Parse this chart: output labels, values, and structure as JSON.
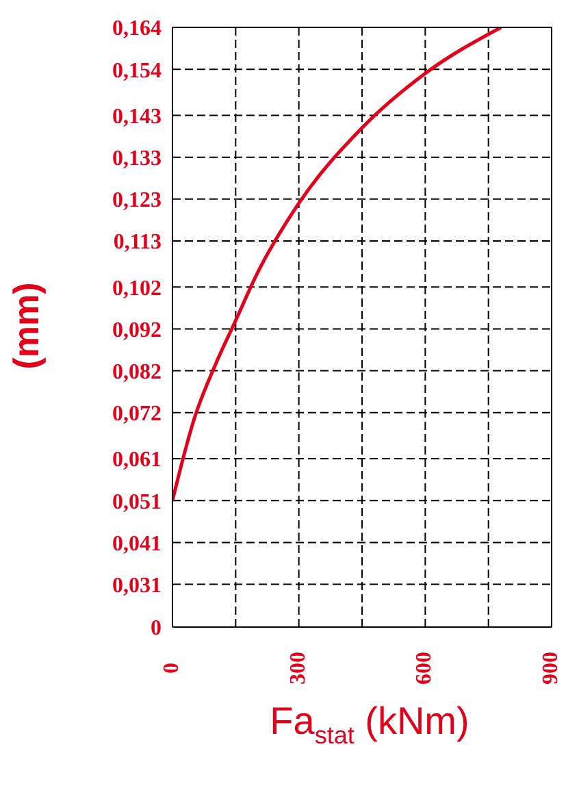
{
  "chart_data": {
    "type": "line",
    "xlabel": "Fa$_{stat}$ (kNm)",
    "ylabel": "(mm)",
    "x": [
      0,
      25,
      50,
      100,
      150,
      200,
      300,
      450,
      600,
      780
    ],
    "series": [
      {
        "color": "#e2001a",
        "values": [
          0.051,
          0.061,
          0.07,
          0.083,
          0.094,
          0.105,
          0.122,
          0.14,
          0.153,
          0.164
        ]
      }
    ],
    "xlim": [
      0,
      900
    ],
    "xticks": [
      0,
      {
        "value": 150,
        "label": null
      },
      300,
      {
        "value": 450,
        "label": null
      },
      600,
      {
        "value": 750,
        "label": null
      },
      900
    ],
    "ylim": [
      0.0208,
      0.164
    ],
    "yticks": [
      {
        "value": 0.0208,
        "label": "0"
      },
      {
        "value": 0.031,
        "label": "0,031"
      },
      {
        "value": 0.041,
        "label": "0,041"
      },
      {
        "value": 0.051,
        "label": "0,051"
      },
      {
        "value": 0.061,
        "label": "0,061"
      },
      {
        "value": 0.072,
        "label": "0,072"
      },
      {
        "value": 0.082,
        "label": "0,082"
      },
      {
        "value": 0.092,
        "label": "0,092"
      },
      {
        "value": 0.102,
        "label": "0,102"
      },
      {
        "value": 0.113,
        "label": "0,113"
      },
      {
        "value": 0.123,
        "label": "0,123"
      },
      {
        "value": 0.133,
        "label": "0,133"
      },
      {
        "value": 0.143,
        "label": "0,143"
      },
      {
        "value": 0.154,
        "label": "0,154"
      },
      {
        "value": 0.164,
        "label": "0,164"
      }
    ],
    "grid": true,
    "marker": "none",
    "line_style": "solid",
    "legend": false
  }
}
